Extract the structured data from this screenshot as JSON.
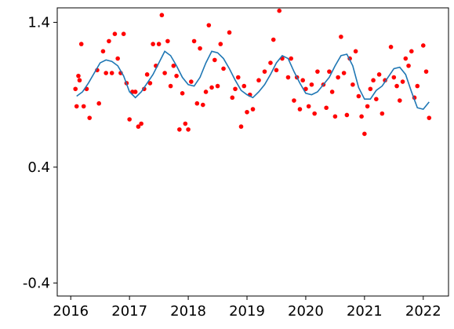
{
  "chart_data": {
    "type": "scatter",
    "xlim": [
      2015.77,
      2022.43
    ],
    "ylim": [
      -0.49,
      1.5
    ],
    "xticks": [
      2016,
      2017,
      2018,
      2019,
      2020,
      2021,
      2022
    ],
    "yticks": [
      -0.4,
      0.4,
      1.4
    ],
    "series": [
      {
        "type": "scatter",
        "color": "#ff0000",
        "x": [
          2016.08,
          2016.1,
          2016.13,
          2016.15,
          2016.18,
          2016.22,
          2016.27,
          2016.32,
          2016.45,
          2016.48,
          2016.55,
          2016.6,
          2016.65,
          2016.7,
          2016.75,
          2016.8,
          2016.85,
          2016.9,
          2016.95,
          2017.0,
          2017.05,
          2017.1,
          2017.15,
          2017.2,
          2017.25,
          2017.3,
          2017.35,
          2017.4,
          2017.45,
          2017.5,
          2017.55,
          2017.6,
          2017.65,
          2017.7,
          2017.75,
          2017.8,
          2017.85,
          2017.9,
          2017.95,
          2018.0,
          2018.05,
          2018.1,
          2018.15,
          2018.2,
          2018.25,
          2018.3,
          2018.35,
          2018.4,
          2018.45,
          2018.5,
          2018.55,
          2018.6,
          2018.7,
          2018.75,
          2018.8,
          2018.85,
          2018.9,
          2018.95,
          2019.0,
          2019.05,
          2019.1,
          2019.2,
          2019.3,
          2019.4,
          2019.45,
          2019.5,
          2019.55,
          2019.6,
          2019.7,
          2019.75,
          2019.8,
          2019.85,
          2019.9,
          2019.95,
          2020.0,
          2020.05,
          2020.1,
          2020.15,
          2020.2,
          2020.3,
          2020.35,
          2020.4,
          2020.45,
          2020.5,
          2020.55,
          2020.6,
          2020.65,
          2020.7,
          2020.75,
          2020.8,
          2020.85,
          2020.9,
          2020.95,
          2021.0,
          2021.05,
          2021.1,
          2021.15,
          2021.2,
          2021.25,
          2021.3,
          2021.35,
          2021.45,
          2021.5,
          2021.55,
          2021.6,
          2021.65,
          2021.7,
          2021.75,
          2021.8,
          2021.85,
          2021.9,
          2022.0,
          2022.05,
          2022.1
        ],
        "values": [
          0.94,
          0.82,
          1.03,
          1.0,
          1.25,
          0.82,
          0.94,
          0.74,
          1.07,
          0.84,
          1.2,
          1.05,
          1.27,
          1.05,
          1.32,
          1.15,
          1.05,
          1.32,
          0.98,
          0.73,
          0.92,
          0.92,
          0.68,
          0.7,
          0.94,
          1.04,
          0.98,
          1.25,
          1.1,
          1.25,
          1.45,
          1.05,
          1.27,
          0.96,
          1.1,
          1.03,
          0.66,
          0.91,
          0.7,
          0.66,
          0.99,
          1.27,
          0.84,
          1.22,
          0.83,
          0.92,
          1.38,
          0.95,
          1.14,
          0.96,
          1.25,
          1.08,
          1.33,
          0.88,
          0.94,
          1.02,
          0.68,
          0.96,
          0.78,
          0.9,
          0.8,
          1.0,
          1.06,
          1.12,
          1.28,
          1.07,
          1.48,
          1.15,
          1.02,
          1.15,
          0.86,
          1.02,
          0.8,
          1.0,
          0.94,
          0.82,
          0.97,
          0.77,
          1.06,
          0.97,
          0.81,
          1.06,
          0.92,
          0.75,
          1.02,
          1.3,
          1.05,
          0.76,
          1.15,
          0.97,
          1.2,
          0.89,
          0.75,
          0.63,
          0.82,
          0.94,
          1.0,
          0.87,
          1.04,
          0.77,
          1.0,
          1.23,
          1.02,
          0.96,
          0.86,
          0.99,
          1.15,
          1.1,
          1.2,
          0.88,
          0.96,
          1.24,
          1.06,
          0.74
        ]
      },
      {
        "type": "line",
        "color": "#1f77b4",
        "x": [
          2016.1,
          2016.2,
          2016.3,
          2016.4,
          2016.5,
          2016.6,
          2016.7,
          2016.8,
          2016.9,
          2017.0,
          2017.1,
          2017.2,
          2017.3,
          2017.4,
          2017.5,
          2017.6,
          2017.7,
          2017.8,
          2017.9,
          2018.0,
          2018.1,
          2018.2,
          2018.3,
          2018.4,
          2018.5,
          2018.6,
          2018.7,
          2018.8,
          2018.9,
          2019.0,
          2019.1,
          2019.2,
          2019.3,
          2019.4,
          2019.5,
          2019.6,
          2019.7,
          2019.8,
          2019.9,
          2020.0,
          2020.1,
          2020.2,
          2020.3,
          2020.4,
          2020.5,
          2020.6,
          2020.7,
          2020.8,
          2020.9,
          2021.0,
          2021.1,
          2021.2,
          2021.3,
          2021.4,
          2021.5,
          2021.6,
          2021.7,
          2021.8,
          2021.9,
          2022.0,
          2022.1
        ],
        "values": [
          0.89,
          0.92,
          0.98,
          1.05,
          1.12,
          1.14,
          1.13,
          1.1,
          1.03,
          0.92,
          0.88,
          0.92,
          0.98,
          1.04,
          1.12,
          1.2,
          1.17,
          1.1,
          1.02,
          0.97,
          0.96,
          1.02,
          1.12,
          1.2,
          1.19,
          1.15,
          1.08,
          1.0,
          0.93,
          0.9,
          0.88,
          0.92,
          0.97,
          1.04,
          1.12,
          1.17,
          1.15,
          1.06,
          0.98,
          0.91,
          0.9,
          0.92,
          0.97,
          1.02,
          1.1,
          1.17,
          1.18,
          1.1,
          0.95,
          0.87,
          0.87,
          0.93,
          0.96,
          1.02,
          1.08,
          1.09,
          1.04,
          0.92,
          0.81,
          0.8,
          0.85
        ]
      }
    ]
  }
}
